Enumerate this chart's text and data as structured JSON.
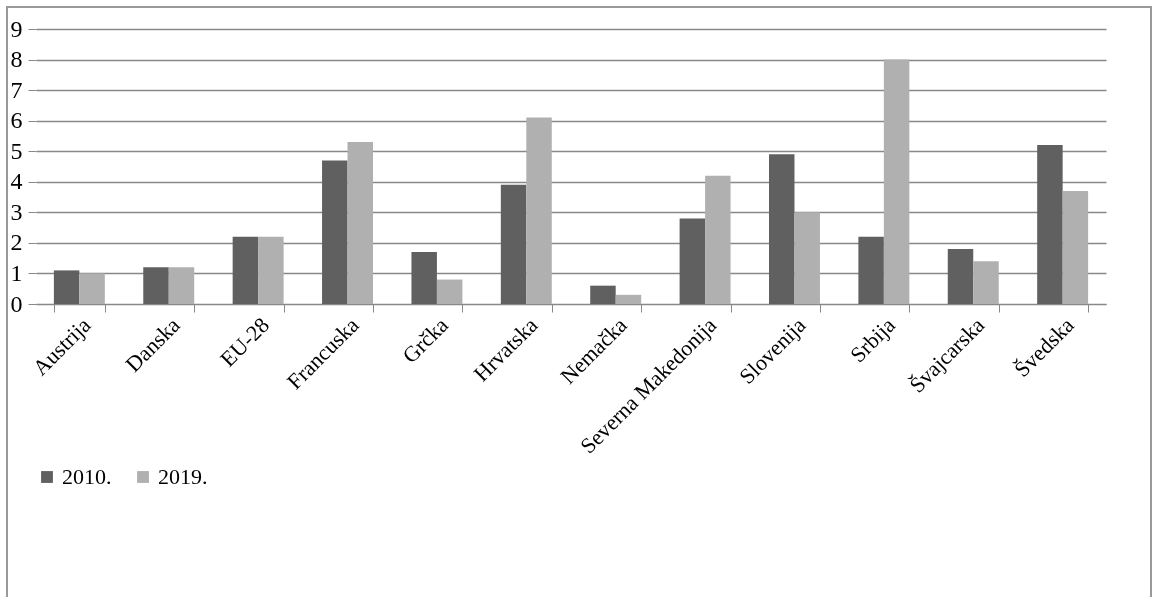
{
  "chart_data": {
    "type": "bar",
    "categories": [
      "Austrija",
      "Danska",
      "EU-28",
      "Francuska",
      "Grčka",
      "Hrvatska",
      "Nemačka",
      "Severna Makedonija",
      "Slovenija",
      "Srbija",
      "Švajcarska",
      "Švedska"
    ],
    "series": [
      {
        "name": "2010.",
        "color": "#606060",
        "values": [
          1.1,
          1.2,
          2.2,
          4.7,
          1.7,
          3.9,
          0.6,
          2.8,
          4.9,
          2.2,
          1.8,
          5.2
        ]
      },
      {
        "name": "2019.",
        "color": "#b0b0b0",
        "values": [
          1.0,
          1.2,
          2.2,
          5.3,
          0.8,
          6.1,
          0.3,
          4.2,
          3.0,
          8.0,
          1.4,
          3.7
        ]
      }
    ],
    "ylim": [
      0,
      9
    ],
    "yticks": [
      0,
      1,
      2,
      3,
      4,
      5,
      6,
      7,
      8,
      9
    ],
    "grid": "y",
    "legend": "bottom"
  }
}
